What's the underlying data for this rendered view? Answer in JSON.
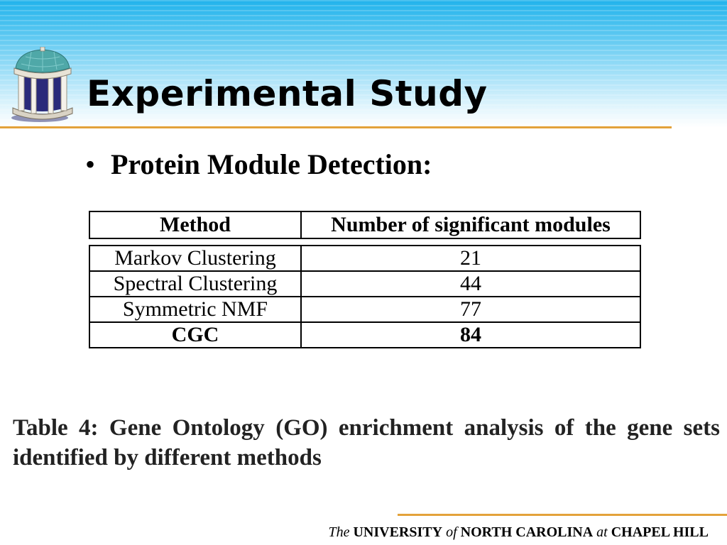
{
  "slide": {
    "title": "Experimental Study",
    "bullet": "Protein Module Detection:"
  },
  "table": {
    "headers": [
      "Method",
      "Number of significant modules"
    ],
    "rows": [
      {
        "method": "Markov Clustering",
        "count": "21"
      },
      {
        "method": "Spectral Clustering",
        "count": "44"
      },
      {
        "method": "Symmetric NMF",
        "count": "77"
      },
      {
        "method": "CGC",
        "count": "84"
      }
    ]
  },
  "caption": "Table 4: Gene Ontology (GO) enrichment analysis of the gene sets identified by different methods",
  "footer": {
    "the": "The",
    "university": "UNIVERSITY",
    "of": "of",
    "north_carolina": "NORTH CAROLINA",
    "at": "at",
    "chapel_hill": "CHAPEL HILL"
  },
  "colors": {
    "banner_top": "#21b3ec",
    "rule": "#e3a23a"
  },
  "icons": {
    "logo": "old-well-icon"
  }
}
